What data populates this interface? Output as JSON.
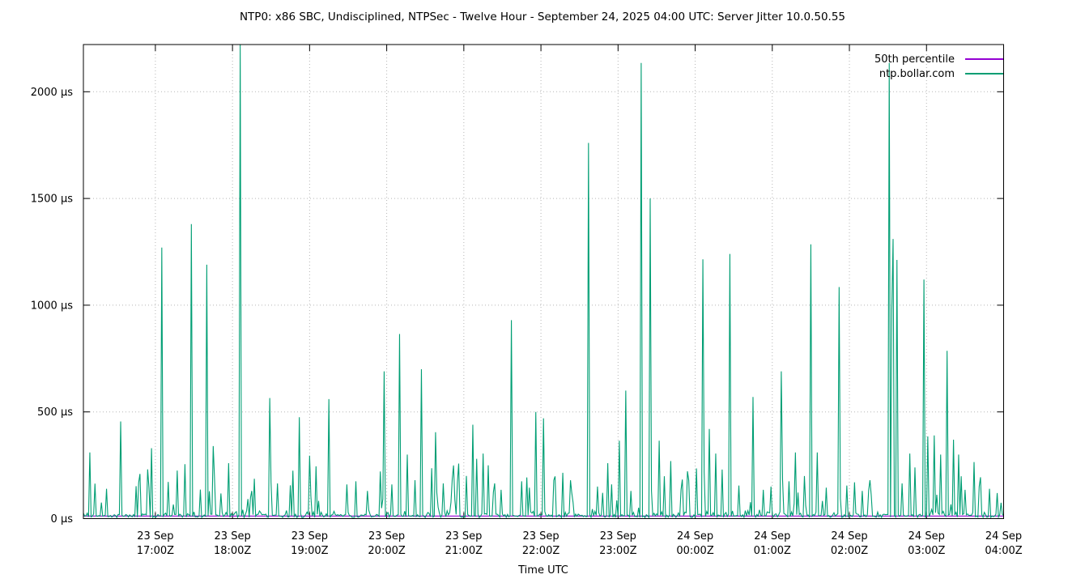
{
  "title": "NTP0: x86 SBC, Undisciplined, NTPSec - Twelve Hour - September 24, 2025 04:00 UTC: Server Jitter 10.0.50.55",
  "xlabel": "Time UTC",
  "chart_data": {
    "type": "line",
    "title": "NTP0: x86 SBC, Undisciplined, NTPSec - Twelve Hour - September 24, 2025 04:00 UTC: Server Jitter 10.0.50.55",
    "xlabel": "Time UTC",
    "grid": true,
    "legend_position": "top-right-inside",
    "x_axis": {
      "start": "23 Sep 16:04Z",
      "end": "24 Sep 04:00Z",
      "total_minutes": 716,
      "first_tick_minute": 56,
      "tick_interval_minutes": 60,
      "ticks": [
        {
          "line1": "23 Sep",
          "line2": "17:00Z"
        },
        {
          "line1": "23 Sep",
          "line2": "18:00Z"
        },
        {
          "line1": "23 Sep",
          "line2": "19:00Z"
        },
        {
          "line1": "23 Sep",
          "line2": "20:00Z"
        },
        {
          "line1": "23 Sep",
          "line2": "21:00Z"
        },
        {
          "line1": "23 Sep",
          "line2": "22:00Z"
        },
        {
          "line1": "23 Sep",
          "line2": "23:00Z"
        },
        {
          "line1": "24 Sep",
          "line2": "00:00Z"
        },
        {
          "line1": "24 Sep",
          "line2": "01:00Z"
        },
        {
          "line1": "24 Sep",
          "line2": "02:00Z"
        },
        {
          "line1": "24 Sep",
          "line2": "03:00Z"
        },
        {
          "line1": "24 Sep",
          "line2": "04:00Z"
        }
      ]
    },
    "y_axis": {
      "unit": "µs",
      "ticks": [
        0,
        500,
        1000,
        1500,
        2000
      ],
      "tick_suffix": " µs",
      "range_us": [
        0,
        2221
      ]
    },
    "series": [
      {
        "name": "50th percentile",
        "color": "#9400d3",
        "style": "constant",
        "value_us": 12
      },
      {
        "name": "ntp.bollar.com",
        "color": "#009e73",
        "style": "impulse-noise",
        "baseline_us": {
          "median": 15,
          "typical_band": [
            3,
            45
          ],
          "minor_stray_band": [
            60,
            260
          ],
          "stray_probability": 0.09
        },
        "spikes": [
          [
            "16:09",
            310
          ],
          [
            "16:22",
            140
          ],
          [
            "16:33",
            455
          ],
          [
            "16:47",
            120
          ],
          [
            "16:57",
            330
          ],
          [
            "17:05",
            1270
          ],
          [
            "17:17",
            225
          ],
          [
            "17:23",
            255
          ],
          [
            "17:28",
            1380
          ],
          [
            "17:40",
            1190
          ],
          [
            "17:45",
            340
          ],
          [
            "17:57",
            260
          ],
          [
            "18:06",
            2400
          ],
          [
            "18:15",
            130
          ],
          [
            "18:29",
            565
          ],
          [
            "18:35",
            165
          ],
          [
            "18:45",
            135
          ],
          [
            "18:52",
            475
          ],
          [
            "19:00",
            295
          ],
          [
            "19:05",
            245
          ],
          [
            "19:15",
            560
          ],
          [
            "19:29",
            160
          ],
          [
            "19:36",
            175
          ],
          [
            "19:45",
            130
          ],
          [
            "19:58",
            690
          ],
          [
            "20:04",
            160
          ],
          [
            "20:10",
            865
          ],
          [
            "20:16",
            300
          ],
          [
            "20:22",
            180
          ],
          [
            "20:27",
            700
          ],
          [
            "20:38",
            405
          ],
          [
            "20:44",
            165
          ],
          [
            "20:55",
            170
          ],
          [
            "21:02",
            200
          ],
          [
            "21:07",
            440
          ],
          [
            "21:10",
            280
          ],
          [
            "21:15",
            305
          ],
          [
            "21:19",
            250
          ],
          [
            "21:24",
            165
          ],
          [
            "21:29",
            135
          ],
          [
            "21:37",
            930
          ],
          [
            "21:45",
            175
          ],
          [
            "21:51",
            145
          ],
          [
            "21:56",
            500
          ],
          [
            "22:02",
            470
          ],
          [
            "22:10",
            180
          ],
          [
            "22:17",
            215
          ],
          [
            "22:24",
            120
          ],
          [
            "22:37",
            1760
          ],
          [
            "22:44",
            150
          ],
          [
            "22:52",
            260
          ],
          [
            "23:01",
            365
          ],
          [
            "23:06",
            600
          ],
          [
            "23:10",
            130
          ],
          [
            "23:18",
            2135
          ],
          [
            "23:25",
            1500
          ],
          [
            "23:32",
            365
          ],
          [
            "23:41",
            270
          ],
          [
            "23:49",
            135
          ],
          [
            "23:55",
            180
          ],
          [
            "00:01",
            235
          ],
          [
            "00:06",
            1215
          ],
          [
            "00:11",
            420
          ],
          [
            "00:16",
            305
          ],
          [
            "00:21",
            230
          ],
          [
            "00:27",
            1240
          ],
          [
            "00:34",
            155
          ],
          [
            "00:45",
            570
          ],
          [
            "00:53",
            135
          ],
          [
            "00:59",
            150
          ],
          [
            "01:07",
            690
          ],
          [
            "01:13",
            175
          ],
          [
            "01:18",
            310
          ],
          [
            "01:30",
            1285
          ],
          [
            "01:35",
            310
          ],
          [
            "01:42",
            145
          ],
          [
            "01:52",
            1085
          ],
          [
            "01:58",
            155
          ],
          [
            "02:04",
            170
          ],
          [
            "02:10",
            130
          ],
          [
            "02:16",
            180
          ],
          [
            "02:31",
            2135
          ],
          [
            "02:33",
            980
          ],
          [
            "02:34",
            1310
          ],
          [
            "02:37",
            1212
          ],
          [
            "02:41",
            165
          ],
          [
            "02:47",
            305
          ],
          [
            "02:51",
            240
          ],
          [
            "02:58",
            1120
          ],
          [
            "03:01",
            385
          ],
          [
            "03:06",
            390
          ],
          [
            "03:11",
            300
          ],
          [
            "03:16",
            786
          ],
          [
            "03:21",
            370
          ],
          [
            "03:25",
            300
          ],
          [
            "03:30",
            135
          ],
          [
            "03:37",
            265
          ],
          [
            "03:42",
            150
          ],
          [
            "03:49",
            140
          ],
          [
            "03:55",
            120
          ]
        ]
      }
    ]
  }
}
